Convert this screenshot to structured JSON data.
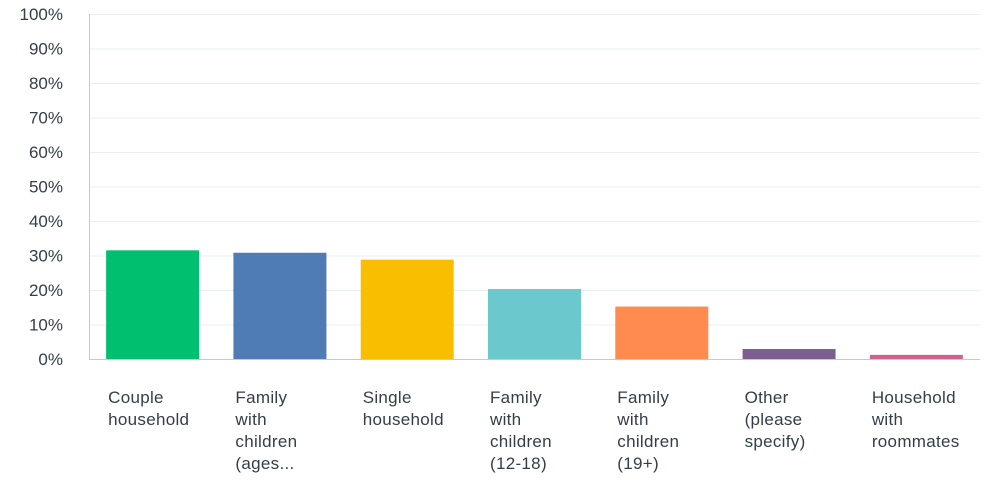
{
  "chart_data": {
    "type": "bar",
    "title": "",
    "xlabel": "",
    "ylabel": "",
    "ylim": [
      0,
      100
    ],
    "y_ticks": [
      "0%",
      "10%",
      "20%",
      "30%",
      "40%",
      "50%",
      "60%",
      "70%",
      "80%",
      "90%",
      "100%"
    ],
    "grid": true,
    "categories": [
      [
        "Couple",
        "household"
      ],
      [
        "Family",
        "with",
        "children",
        "(ages..."
      ],
      [
        "Single",
        "household"
      ],
      [
        "Family",
        "with",
        "children",
        "(12-18)"
      ],
      [
        "Family",
        "with",
        "children",
        "(19+)"
      ],
      [
        "Other",
        "(please",
        "specify)"
      ],
      [
        "Household",
        "with",
        "roommates"
      ]
    ],
    "values": [
      31.5,
      30.8,
      28.8,
      20.3,
      15.2,
      2.9,
      1.2
    ],
    "colors": [
      "#00bf6f",
      "#507cb6",
      "#f9be00",
      "#6bc8cd",
      "#ff8b4f",
      "#7d5e90",
      "#d25f90"
    ]
  }
}
